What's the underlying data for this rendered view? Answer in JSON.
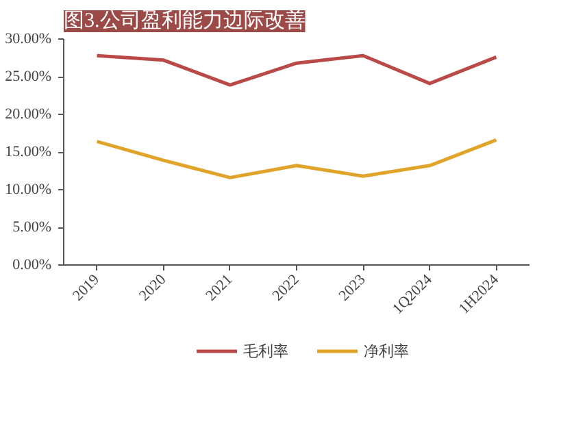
{
  "chart_data": {
    "type": "line",
    "title": "图3.公司盈利能力边际改善",
    "categories": [
      "2019",
      "2020",
      "2021",
      "2022",
      "2023",
      "1Q2024",
      "1H2024"
    ],
    "series": [
      {
        "name": "毛利率",
        "color": "#b94a48",
        "values": [
          27.8,
          27.2,
          23.9,
          26.8,
          27.8,
          24.1,
          27.6
        ]
      },
      {
        "name": "净利率",
        "color": "#e0a42b",
        "values": [
          16.4,
          13.9,
          11.6,
          13.2,
          11.8,
          13.2,
          16.6
        ]
      }
    ],
    "ylim": [
      0,
      30
    ],
    "yticks": [
      {
        "value": 0,
        "label": "0.00%"
      },
      {
        "value": 5,
        "label": "5.00%"
      },
      {
        "value": 10,
        "label": "10.00%"
      },
      {
        "value": 15,
        "label": "15.00%"
      },
      {
        "value": 20,
        "label": "20.00%"
      },
      {
        "value": 25,
        "label": "25.00%"
      },
      {
        "value": 30,
        "label": "30.00%"
      }
    ],
    "grid": false,
    "legend": "bottom",
    "line_style": "solid",
    "marker": "none"
  }
}
